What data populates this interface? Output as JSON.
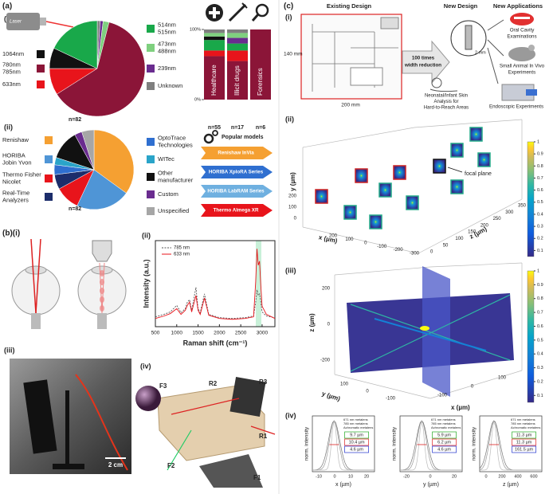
{
  "a": {
    "label": "(a)",
    "i": "(i)",
    "ii": "(ii)",
    "laser": "Laser",
    "pie1": {
      "n": "n=82",
      "slices": [
        {
          "lines": [
            "Unknown"
          ],
          "color": "#7f7f7f",
          "value": 1
        },
        {
          "lines": [
            "239nm"
          ],
          "color": "#6a2c8f",
          "value": 1
        },
        {
          "lines": [
            "473nm",
            "488nm"
          ],
          "color": "#7fd07f",
          "value": 2
        },
        {
          "lines": [
            "780nm",
            "785nm"
          ],
          "color": "#8b1538",
          "value": 62
        },
        {
          "lines": [
            "633nm"
          ],
          "color": "#e8141b",
          "value": 9
        },
        {
          "lines": [
            "1064nm"
          ],
          "color": "#111111",
          "value": 7
        },
        {
          "lines": [
            "514nm",
            "515nm"
          ],
          "color": "#19a84a",
          "value": 18
        }
      ]
    },
    "bars": {
      "categories": [
        "Healthcare",
        "Illicit drugs",
        "Forensics"
      ],
      "n": [
        "n=55",
        "n=17",
        "n=6"
      ],
      "ylim": [
        0,
        100
      ],
      "yticks": [
        {
          "value": 0,
          "label": "0%"
        },
        {
          "value": 100,
          "label": "100%"
        }
      ],
      "series": [
        {
          "color": "#8b1538",
          "values": [
            62,
            55,
            100
          ]
        },
        {
          "color": "#e8141b",
          "values": [
            8,
            15,
            0
          ]
        },
        {
          "color": "#19a84a",
          "values": [
            15,
            10,
            0
          ]
        },
        {
          "color": "#111111",
          "values": [
            5,
            0,
            0
          ]
        },
        {
          "color": "#6a2c8f",
          "values": [
            0,
            8,
            0
          ]
        },
        {
          "color": "#7fd07f",
          "values": [
            5,
            7,
            0
          ]
        },
        {
          "color": "#7f7f7f",
          "values": [
            5,
            5,
            0
          ]
        }
      ]
    },
    "pie2": {
      "n": "n=82",
      "slices": [
        {
          "lines": [
            "Renishaw"
          ],
          "color": "#f5a032",
          "value": 35
        },
        {
          "lines": [
            "HORIBA",
            "Jobin Yvon"
          ],
          "color": "#4f95d6",
          "value": 22
        },
        {
          "lines": [
            "Thermo Fisher",
            "Nicolet"
          ],
          "color": "#e8141b",
          "value": 10
        },
        {
          "lines": [
            "Real-Time",
            "Analyzers"
          ],
          "color": "#1c2d6b",
          "value": 6
        },
        {
          "lines": [
            "OptoTrace",
            "Technologies"
          ],
          "color": "#2f6fd0",
          "value": 4
        },
        {
          "lines": [
            "WITec"
          ],
          "color": "#2aa4c9",
          "value": 3
        },
        {
          "lines": [
            "Other",
            "manufacturer"
          ],
          "color": "#111111",
          "value": 12
        },
        {
          "lines": [
            "Custom"
          ],
          "color": "#6a2c8f",
          "value": 3
        },
        {
          "lines": [
            "Unspecified"
          ],
          "color": "#a6a6a6",
          "value": 5
        }
      ]
    },
    "models": {
      "title": "Popular models",
      "items": [
        {
          "text": "Renishaw InVia",
          "color": "#f5a032"
        },
        {
          "text": "HORIBA XploRA Series",
          "color": "#2f6fd0"
        },
        {
          "text": "HORIBA LabRAM Series",
          "color": "#6fb0e0"
        },
        {
          "text": "Thermo Almega XR",
          "color": "#e8141b"
        }
      ]
    }
  },
  "b": {
    "label": "(b)(i)",
    "ii": "(ii)",
    "iii": "(iii)",
    "iv": "(iv)",
    "scale": "2 cm",
    "parts": [
      "F1",
      "F2",
      "F3",
      "R1",
      "R2",
      "R3"
    ],
    "raman": {
      "ylabel": "Intensity (a.u.)",
      "xlabel": "Raman shift (cm⁻¹)",
      "xlim": [
        500,
        3300
      ],
      "ylim": [
        0,
        1.05
      ],
      "xticks": [
        500,
        1000,
        1500,
        2000,
        2500,
        3000
      ],
      "x": [
        500,
        700,
        850,
        1000,
        1100,
        1200,
        1250,
        1300,
        1350,
        1450,
        1500,
        1550,
        1650,
        1750,
        2000,
        2300,
        2600,
        2800,
        2850,
        2880,
        2910,
        2940,
        2970,
        3000,
        3100,
        3300
      ],
      "series": [
        {
          "name": "785 nm",
          "color": "#555555",
          "dash": true,
          "values": [
            0.12,
            0.15,
            0.18,
            0.26,
            0.17,
            0.22,
            0.3,
            0.33,
            0.2,
            0.48,
            0.22,
            0.17,
            0.4,
            0.15,
            0.11,
            0.1,
            0.11,
            0.13,
            0.3,
            0.45,
            0.38,
            0.4,
            0.3,
            0.18,
            0.13,
            0.11
          ]
        },
        {
          "name": "633 nm",
          "color": "#e8141b",
          "dash": false,
          "values": [
            0.1,
            0.13,
            0.16,
            0.22,
            0.15,
            0.2,
            0.26,
            0.3,
            0.18,
            0.38,
            0.2,
            0.15,
            0.35,
            0.14,
            0.1,
            0.09,
            0.1,
            0.12,
            0.55,
            0.95,
            0.75,
            0.8,
            0.5,
            0.25,
            0.15,
            0.1
          ]
        }
      ]
    }
  },
  "c": {
    "label": "(c)",
    "i": "(i)",
    "ii": "(ii)",
    "iii": "(iii)",
    "iv": "(iv)",
    "heads": [
      "Existing Design",
      "New Design",
      "New Applications"
    ],
    "dims": [
      "140 mm",
      "200 mm"
    ],
    "reduction": [
      "100 times",
      "width reduction"
    ],
    "probe": "2 mm",
    "apps": [
      [
        "Oral Cavity",
        "Examinations"
      ],
      [
        "Small Animal In Vivo",
        "Experiments"
      ],
      [
        "Endoscopic Experiments"
      ]
    ],
    "neonatal": [
      "Neonatal/Infant Skin",
      "Analysis for",
      "Hard-to-Reach Areas"
    ],
    "plot3d": {
      "ylabel": "y (µm)",
      "xlabel": "x (µm)",
      "zlabel": "z (µm)",
      "focal": "focal plane",
      "yt": [
        "200",
        "100",
        "0"
      ],
      "xt": [
        "200",
        "100",
        "0",
        "-100",
        "-200",
        "-300"
      ],
      "zt": [
        "0",
        "50",
        "100",
        "150",
        "200",
        "250",
        "300",
        "350"
      ],
      "cbar": {
        "lim": [
          0.05,
          1
        ],
        "ticks": [
          0.1,
          0.2,
          0.3,
          0.4,
          0.5,
          0.6,
          0.7,
          0.8,
          0.9,
          1
        ]
      }
    },
    "plot3d2": {
      "zlabel": "z (µm)",
      "ylabel": "y (µm)",
      "xlabel": "x (µm)",
      "zt": [
        "200",
        "0",
        "-200"
      ],
      "yt": [
        "100",
        "0",
        "-100"
      ],
      "xt": [
        "-100",
        "0",
        "100"
      ],
      "cbar": {
        "lim": [
          0.05,
          1
        ],
        "ticks": [
          0.1,
          0.2,
          0.3,
          0.4,
          0.5,
          0.6,
          0.7,
          0.8,
          0.9,
          1
        ]
      }
    },
    "profiles": {
      "ylabel": "norm. intensity",
      "legend": [
        "671 nm metalens",
        "785 nm metalens",
        "Achromatic metalens"
      ],
      "plots": [
        {
          "xlabel": "x (µm)",
          "ticks": [
            "-10",
            "0",
            "10",
            "20"
          ],
          "fwhm": [
            "9.7 µm",
            "10.4 µm",
            "4.6 µm"
          ]
        },
        {
          "xlabel": "y (µm)",
          "ticks": [
            "-20",
            "0",
            "20"
          ],
          "fwhm": [
            "5.9 µm",
            "6.2 µm",
            "4.6 µm"
          ]
        },
        {
          "xlabel": "z (µm)",
          "ticks": [
            "0",
            "200",
            "400",
            "600"
          ],
          "fwhm": [
            "11.3 µm",
            "11.3 µm",
            "161.5 µm"
          ]
        }
      ]
    }
  }
}
